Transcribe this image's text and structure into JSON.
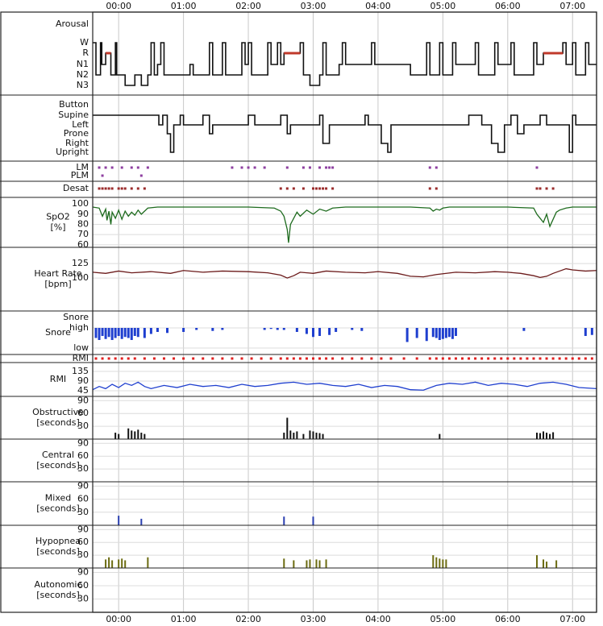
{
  "x_axis": {
    "xlim": [
      -0.4,
      7.37
    ],
    "xticks": [
      {
        "value": 0,
        "label": "00:00"
      },
      {
        "value": 1,
        "label": "01:00"
      },
      {
        "value": 2,
        "label": "02:00"
      },
      {
        "value": 3,
        "label": "03:00"
      },
      {
        "value": 4,
        "label": "04:00"
      },
      {
        "value": 5,
        "label": "05:00"
      },
      {
        "value": 6,
        "label": "06:00"
      },
      {
        "value": 7,
        "label": "07:00"
      }
    ]
  },
  "chart_data": [
    {
      "type": "step",
      "ycategories": [
        "Arousal",
        "W",
        "R",
        "N1",
        "N2",
        "N3"
      ],
      "color": "#111111",
      "highlight": {
        "category": "R",
        "color": "#c0392b"
      },
      "x": [
        -0.4,
        -0.35,
        -0.28,
        -0.26,
        -0.2,
        -0.12,
        -0.05,
        -0.03,
        0.1,
        0.25,
        0.35,
        0.45,
        0.5,
        0.55,
        0.6,
        0.65,
        0.7,
        1.1,
        1.15,
        1.4,
        1.45,
        1.6,
        1.65,
        1.9,
        1.95,
        2.0,
        2.05,
        2.3,
        2.35,
        2.45,
        2.5,
        2.55,
        2.8,
        2.85,
        2.95,
        3.1,
        3.15,
        3.2,
        3.4,
        3.45,
        3.5,
        3.9,
        3.95,
        4.5,
        4.75,
        4.8,
        4.95,
        5.0,
        5.15,
        5.2,
        5.5,
        5.55,
        5.8,
        5.85,
        6.05,
        6.1,
        6.4,
        6.45,
        6.55,
        6.85,
        6.9,
        7.0,
        7.05,
        7.2,
        7.25
      ],
      "values": [
        "W",
        "N2",
        "W",
        "N1",
        "R",
        "N2",
        "W",
        "N2",
        "N3",
        "N2",
        "N3",
        "N2",
        "W",
        "N2",
        "N1",
        "W",
        "N2",
        "N1",
        "N2",
        "W",
        "N2",
        "W",
        "N2",
        "W",
        "N1",
        "W",
        "N2",
        "W",
        "N1",
        "W",
        "N1",
        "R",
        "W",
        "N2",
        "N3",
        "N2",
        "W",
        "N2",
        "N1",
        "W",
        "N1",
        "W",
        "N1",
        "N2",
        "W",
        "N2",
        "W",
        "N2",
        "W",
        "N1",
        "W",
        "N2",
        "W",
        "N1",
        "W",
        "N2",
        "W",
        "N1",
        "R",
        "W",
        "N1",
        "W",
        "N2",
        "W",
        "N1"
      ]
    },
    {
      "type": "step",
      "ycategories": [
        "Button",
        "Supine",
        "Left",
        "Prone",
        "Right",
        "Upright"
      ],
      "color": "#111111",
      "x": [
        -0.4,
        0.62,
        0.68,
        0.75,
        0.8,
        0.85,
        0.95,
        1.0,
        1.3,
        1.4,
        1.45,
        2.0,
        2.1,
        2.5,
        2.6,
        2.65,
        3.1,
        3.15,
        3.25,
        3.8,
        3.85,
        4.05,
        4.15,
        4.2,
        5.4,
        5.6,
        5.75,
        5.85,
        5.95,
        6.05,
        6.15,
        6.25,
        6.5,
        6.6,
        6.95,
        7.0,
        7.05
      ],
      "values": [
        "Supine",
        "Left",
        "Supine",
        "Prone",
        "Upright",
        "Left",
        "Supine",
        "Left",
        "Supine",
        "Prone",
        "Left",
        "Supine",
        "Left",
        "Supine",
        "Prone",
        "Left",
        "Supine",
        "Right",
        "Left",
        "Supine",
        "Left",
        "Right",
        "Upright",
        "Left",
        "Supine",
        "Left",
        "Right",
        "Upright",
        "Left",
        "Supine",
        "Prone",
        "Left",
        "Supine",
        "Left",
        "Upright",
        "Supine",
        "Left"
      ]
    },
    {
      "type": "events",
      "rows": [
        {
          "name": "LM",
          "color": "#8e3fa0",
          "x": [
            -0.3,
            -0.2,
            -0.1,
            0.05,
            0.2,
            0.3,
            0.45,
            1.75,
            1.9,
            2.0,
            2.1,
            2.25,
            2.6,
            2.85,
            2.95,
            3.1,
            3.2,
            3.25,
            3.3,
            4.8,
            4.9,
            6.45
          ]
        },
        {
          "name": "PLM",
          "color": "#8e3fa0",
          "x": [
            -0.25,
            0.35
          ]
        }
      ]
    },
    {
      "type": "events",
      "rows": [
        {
          "name": "Desat",
          "color": "#9b2b2b",
          "x": [
            -0.3,
            -0.25,
            -0.2,
            -0.15,
            -0.1,
            0,
            0.05,
            0.1,
            0.2,
            0.3,
            0.4,
            2.5,
            2.6,
            2.7,
            2.85,
            3.0,
            3.05,
            3.1,
            3.15,
            3.2,
            3.3,
            4.8,
            4.9,
            6.45,
            6.5,
            6.6,
            6.7
          ]
        }
      ]
    },
    {
      "type": "line",
      "ylabel": [
        "SpO2",
        "[%]"
      ],
      "ylim": [
        57.5,
        106.5
      ],
      "yticks": [
        100,
        90,
        80,
        70,
        60
      ],
      "color": "#1e6b1e",
      "x": [
        -0.4,
        -0.3,
        -0.25,
        -0.2,
        -0.18,
        -0.15,
        -0.12,
        -0.1,
        -0.05,
        0,
        0.05,
        0.1,
        0.15,
        0.2,
        0.25,
        0.3,
        0.35,
        0.45,
        0.6,
        1.0,
        1.5,
        2.0,
        2.4,
        2.5,
        2.55,
        2.6,
        2.62,
        2.65,
        2.7,
        2.75,
        2.8,
        2.9,
        3.0,
        3.1,
        3.2,
        3.3,
        3.5,
        4.0,
        4.5,
        4.8,
        4.85,
        4.9,
        4.95,
        5.0,
        5.1,
        5.5,
        6.0,
        6.4,
        6.45,
        6.5,
        6.55,
        6.6,
        6.65,
        6.7,
        6.75,
        6.8,
        6.9,
        7.0,
        7.37
      ],
      "values": [
        97,
        96,
        88,
        95,
        84,
        93,
        80,
        92,
        86,
        94,
        85,
        93,
        88,
        92,
        89,
        94,
        90,
        96,
        97,
        97,
        97,
        97,
        96,
        93,
        88,
        75,
        62,
        80,
        86,
        92,
        88,
        94,
        90,
        95,
        93,
        96,
        97,
        97,
        97,
        96,
        93,
        95,
        94,
        96,
        97,
        97,
        97,
        96,
        90,
        86,
        82,
        90,
        78,
        85,
        92,
        94,
        96,
        97,
        97
      ]
    },
    {
      "type": "line",
      "ylabel": [
        "Heart Rate",
        "[bpm]"
      ],
      "ylim": [
        43,
        153
      ],
      "yticks": [
        125,
        100
      ],
      "color": "#6b1a1a",
      "x": [
        -0.4,
        -0.2,
        0,
        0.2,
        0.5,
        0.8,
        1.0,
        1.3,
        1.6,
        2.0,
        2.3,
        2.5,
        2.6,
        2.7,
        2.8,
        3.0,
        3.2,
        3.5,
        3.8,
        4.0,
        4.3,
        4.5,
        4.7,
        4.9,
        5.2,
        5.5,
        5.8,
        6.0,
        6.2,
        6.4,
        6.5,
        6.6,
        6.7,
        6.8,
        6.9,
        7.0,
        7.2,
        7.37
      ],
      "values": [
        110,
        108,
        112,
        109,
        111,
        108,
        113,
        110,
        112,
        111,
        109,
        105,
        100,
        104,
        110,
        108,
        112,
        110,
        109,
        111,
        108,
        103,
        102,
        106,
        110,
        109,
        111,
        110,
        108,
        104,
        101,
        103,
        108,
        112,
        116,
        114,
        112,
        113
      ]
    },
    {
      "type": "bars",
      "channel": "Snore",
      "ylabel": [
        "Snore"
      ],
      "ylim": [
        -0.32,
        1.84
      ],
      "yticks": [
        {
          "value": 1,
          "label": "high"
        },
        {
          "value": 0,
          "label": "low"
        }
      ],
      "color": "#1f3fcf",
      "x": [
        -0.35,
        -0.3,
        -0.25,
        -0.2,
        -0.15,
        -0.1,
        -0.05,
        0,
        0.05,
        0.1,
        0.15,
        0.2,
        0.25,
        0.3,
        0.4,
        0.5,
        0.6,
        0.75,
        1.0,
        1.2,
        1.45,
        1.6,
        2.25,
        2.35,
        2.45,
        2.55,
        2.75,
        2.9,
        3.0,
        3.1,
        3.25,
        3.35,
        3.6,
        3.75,
        4.45,
        4.6,
        4.75,
        4.85,
        4.9,
        4.95,
        5.0,
        5.05,
        5.1,
        5.15,
        5.2,
        6.25,
        7.2,
        7.3
      ],
      "values": [
        0.5,
        0.4,
        0.6,
        0.45,
        0.55,
        0.4,
        0.5,
        0.6,
        0.45,
        0.55,
        0.5,
        0.4,
        0.6,
        0.55,
        0.5,
        0.7,
        0.8,
        0.75,
        0.8,
        0.9,
        0.85,
        0.9,
        0.9,
        0.95,
        0.9,
        0.9,
        0.8,
        0.7,
        0.55,
        0.6,
        0.65,
        0.8,
        0.9,
        0.85,
        0.3,
        0.5,
        0.35,
        0.55,
        0.5,
        0.4,
        0.45,
        0.5,
        0.55,
        0.45,
        0.6,
        0.85,
        0.6,
        0.65
      ]
    },
    {
      "type": "events",
      "rows": [
        {
          "name": "RMI",
          "color": "#e02020",
          "x": [
            -0.35,
            -0.25,
            -0.15,
            -0.05,
            0.05,
            0.15,
            0.25,
            0.4,
            0.55,
            0.7,
            0.85,
            1.0,
            1.15,
            1.3,
            1.45,
            1.6,
            1.75,
            1.9,
            2.05,
            2.2,
            2.35,
            2.5,
            2.6,
            2.7,
            2.8,
            2.9,
            3.0,
            3.1,
            3.2,
            3.3,
            3.45,
            3.6,
            3.75,
            3.9,
            4.05,
            4.2,
            4.4,
            4.6,
            4.8,
            4.9,
            5.0,
            5.1,
            5.2,
            5.3,
            5.4,
            5.5,
            5.6,
            5.7,
            5.8,
            5.9,
            6.0,
            6.1,
            6.2,
            6.3,
            6.4,
            6.5,
            6.6,
            6.7,
            6.8,
            6.9,
            7.0,
            7.1,
            7.2,
            7.3
          ]
        }
      ]
    },
    {
      "type": "line",
      "ylabel": [
        "RMI"
      ],
      "ylim": [
        19,
        176
      ],
      "yticks": [
        135,
        90,
        45
      ],
      "color": "#1f3fcf",
      "x": [
        -0.4,
        -0.3,
        -0.2,
        -0.1,
        0,
        0.1,
        0.2,
        0.3,
        0.4,
        0.5,
        0.7,
        0.9,
        1.1,
        1.3,
        1.5,
        1.7,
        1.9,
        2.1,
        2.3,
        2.5,
        2.7,
        2.9,
        3.1,
        3.3,
        3.5,
        3.7,
        3.9,
        4.1,
        4.3,
        4.5,
        4.7,
        4.9,
        5.1,
        5.3,
        5.5,
        5.7,
        5.9,
        6.1,
        6.3,
        6.5,
        6.7,
        6.9,
        7.1,
        7.37
      ],
      "values": [
        50,
        65,
        55,
        75,
        60,
        80,
        70,
        85,
        65,
        55,
        70,
        60,
        75,
        65,
        70,
        60,
        75,
        65,
        70,
        80,
        85,
        75,
        80,
        70,
        65,
        75,
        60,
        70,
        65,
        50,
        48,
        70,
        80,
        75,
        85,
        70,
        80,
        75,
        65,
        80,
        85,
        75,
        60,
        55
      ]
    },
    {
      "type": "event_bars",
      "ylabel": [
        "Obstructive",
        "[seconds]"
      ],
      "ylim": [
        0,
        100
      ],
      "yticks": [
        90,
        60,
        30
      ],
      "color": "#111111",
      "x": [
        -0.05,
        0,
        0.15,
        0.2,
        0.25,
        0.3,
        0.35,
        0.4,
        2.55,
        2.6,
        2.65,
        2.7,
        2.75,
        2.85,
        2.95,
        3.0,
        3.05,
        3.1,
        3.15,
        4.95,
        6.45,
        6.5,
        6.55,
        6.6,
        6.65,
        6.7
      ],
      "values": [
        15,
        12,
        25,
        20,
        18,
        22,
        15,
        12,
        15,
        50,
        20,
        15,
        18,
        12,
        20,
        18,
        15,
        14,
        12,
        12,
        15,
        14,
        18,
        15,
        12,
        16
      ]
    },
    {
      "type": "event_bars",
      "ylabel": [
        "Central",
        "[seconds]"
      ],
      "ylim": [
        0,
        100
      ],
      "yticks": [
        90,
        60,
        30
      ],
      "color": "#111111",
      "x": [],
      "values": []
    },
    {
      "type": "event_bars",
      "ylabel": [
        "Mixed",
        "[seconds]"
      ],
      "ylim": [
        0,
        100
      ],
      "yticks": [
        90,
        60,
        30
      ],
      "color": "#2a3fb0",
      "x": [
        0,
        0.35,
        2.55,
        3.0
      ],
      "values": [
        22,
        15,
        20,
        20
      ]
    },
    {
      "type": "event_bars",
      "ylabel": [
        "Hypopnea",
        "[seconds]"
      ],
      "ylim": [
        0,
        100
      ],
      "yticks": [
        90,
        60,
        30
      ],
      "color": "#6b6b10",
      "x": [
        -0.2,
        -0.15,
        -0.1,
        0,
        0.05,
        0.1,
        0.45,
        2.55,
        2.7,
        2.9,
        2.95,
        3.05,
        3.1,
        3.2,
        4.85,
        4.9,
        4.95,
        5.0,
        5.05,
        6.45,
        6.55,
        6.6,
        6.75
      ],
      "values": [
        20,
        25,
        18,
        20,
        22,
        18,
        25,
        22,
        18,
        18,
        20,
        20,
        18,
        20,
        30,
        25,
        22,
        20,
        20,
        30,
        20,
        15,
        18
      ]
    },
    {
      "type": "event_bars",
      "ylabel": [
        "Autonomic",
        "[seconds]"
      ],
      "ylim": [
        0,
        100
      ],
      "yticks": [
        90,
        60,
        30
      ],
      "color": "#111111",
      "x": [],
      "values": []
    }
  ]
}
